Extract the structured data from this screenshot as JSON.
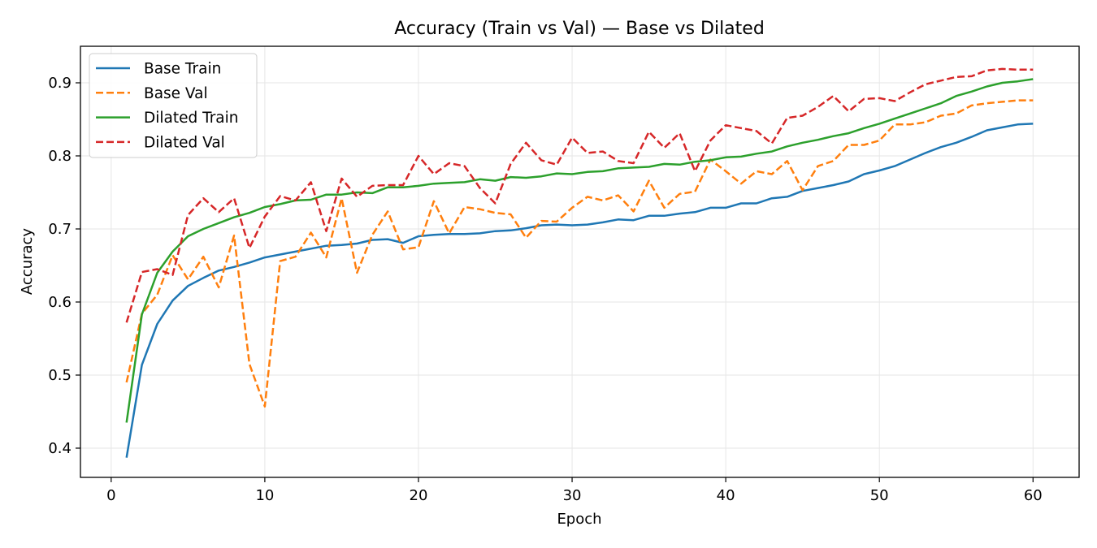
{
  "chart_data": {
    "type": "line",
    "title": "Accuracy (Train vs Val) — Base vs Dilated",
    "xlabel": "Epoch",
    "ylabel": "Accuracy",
    "xlim": [
      -2,
      63
    ],
    "ylim": [
      0.36,
      0.95
    ],
    "xticks": [
      0,
      10,
      20,
      30,
      40,
      50,
      60
    ],
    "yticks": [
      0.4,
      0.5,
      0.6,
      0.7,
      0.8,
      0.9
    ],
    "xtick_labels": [
      "0",
      "10",
      "20",
      "30",
      "40",
      "50",
      "60"
    ],
    "ytick_labels": [
      "0.4",
      "0.5",
      "0.6",
      "0.7",
      "0.8",
      "0.9"
    ],
    "grid": true,
    "legend_position": "top-left",
    "x": [
      1,
      2,
      3,
      4,
      5,
      6,
      7,
      8,
      9,
      10,
      11,
      12,
      13,
      14,
      15,
      16,
      17,
      18,
      19,
      20,
      21,
      22,
      23,
      24,
      25,
      26,
      27,
      28,
      29,
      30,
      31,
      32,
      33,
      34,
      35,
      36,
      37,
      38,
      39,
      40,
      41,
      42,
      43,
      44,
      45,
      46,
      47,
      48,
      49,
      50,
      51,
      52,
      53,
      54,
      55,
      56,
      57,
      58,
      59,
      60
    ],
    "series": [
      {
        "name": "Base Train",
        "color": "#1f77b4",
        "dash": "solid",
        "values": [
          0.387,
          0.514,
          0.57,
          0.602,
          0.622,
          0.633,
          0.643,
          0.648,
          0.654,
          0.661,
          0.665,
          0.669,
          0.673,
          0.677,
          0.678,
          0.68,
          0.685,
          0.686,
          0.681,
          0.69,
          0.692,
          0.693,
          0.693,
          0.694,
          0.697,
          0.698,
          0.701,
          0.705,
          0.706,
          0.705,
          0.706,
          0.709,
          0.713,
          0.712,
          0.718,
          0.718,
          0.721,
          0.723,
          0.729,
          0.729,
          0.735,
          0.735,
          0.742,
          0.744,
          0.752,
          0.756,
          0.76,
          0.765,
          0.775,
          0.78,
          0.786,
          0.795,
          0.804,
          0.812,
          0.818,
          0.826,
          0.835,
          0.839,
          0.843,
          0.844
        ]
      },
      {
        "name": "Base Val",
        "color": "#ff7f0e",
        "dash": "dashed",
        "values": [
          0.49,
          0.584,
          0.61,
          0.664,
          0.631,
          0.662,
          0.62,
          0.691,
          0.515,
          0.457,
          0.656,
          0.662,
          0.695,
          0.661,
          0.742,
          0.64,
          0.692,
          0.724,
          0.672,
          0.675,
          0.738,
          0.694,
          0.73,
          0.727,
          0.722,
          0.72,
          0.688,
          0.711,
          0.71,
          0.729,
          0.744,
          0.739,
          0.746,
          0.724,
          0.766,
          0.729,
          0.748,
          0.751,
          0.795,
          0.779,
          0.762,
          0.779,
          0.775,
          0.793,
          0.753,
          0.786,
          0.793,
          0.815,
          0.815,
          0.821,
          0.843,
          0.843,
          0.846,
          0.855,
          0.858,
          0.869,
          0.872,
          0.874,
          0.876,
          0.876
        ]
      },
      {
        "name": "Dilated Train",
        "color": "#2ca02c",
        "dash": "solid",
        "values": [
          0.435,
          0.583,
          0.64,
          0.669,
          0.69,
          0.7,
          0.708,
          0.716,
          0.722,
          0.73,
          0.734,
          0.739,
          0.74,
          0.747,
          0.747,
          0.75,
          0.749,
          0.757,
          0.757,
          0.759,
          0.762,
          0.763,
          0.764,
          0.768,
          0.766,
          0.771,
          0.77,
          0.772,
          0.776,
          0.775,
          0.778,
          0.779,
          0.783,
          0.784,
          0.785,
          0.789,
          0.788,
          0.792,
          0.794,
          0.798,
          0.799,
          0.803,
          0.806,
          0.813,
          0.818,
          0.822,
          0.827,
          0.831,
          0.838,
          0.844,
          0.851,
          0.858,
          0.865,
          0.872,
          0.882,
          0.888,
          0.895,
          0.9,
          0.902,
          0.905
        ]
      },
      {
        "name": "Dilated Val",
        "color": "#d62728",
        "dash": "dashed",
        "values": [
          0.572,
          0.641,
          0.645,
          0.637,
          0.719,
          0.742,
          0.723,
          0.742,
          0.674,
          0.717,
          0.745,
          0.739,
          0.764,
          0.697,
          0.769,
          0.744,
          0.759,
          0.76,
          0.76,
          0.8,
          0.775,
          0.79,
          0.786,
          0.756,
          0.735,
          0.789,
          0.818,
          0.794,
          0.788,
          0.825,
          0.804,
          0.806,
          0.793,
          0.79,
          0.833,
          0.811,
          0.831,
          0.779,
          0.821,
          0.842,
          0.838,
          0.834,
          0.817,
          0.852,
          0.855,
          0.867,
          0.882,
          0.861,
          0.878,
          0.879,
          0.875,
          0.887,
          0.898,
          0.903,
          0.908,
          0.909,
          0.917,
          0.919,
          0.918,
          0.918
        ]
      }
    ]
  }
}
